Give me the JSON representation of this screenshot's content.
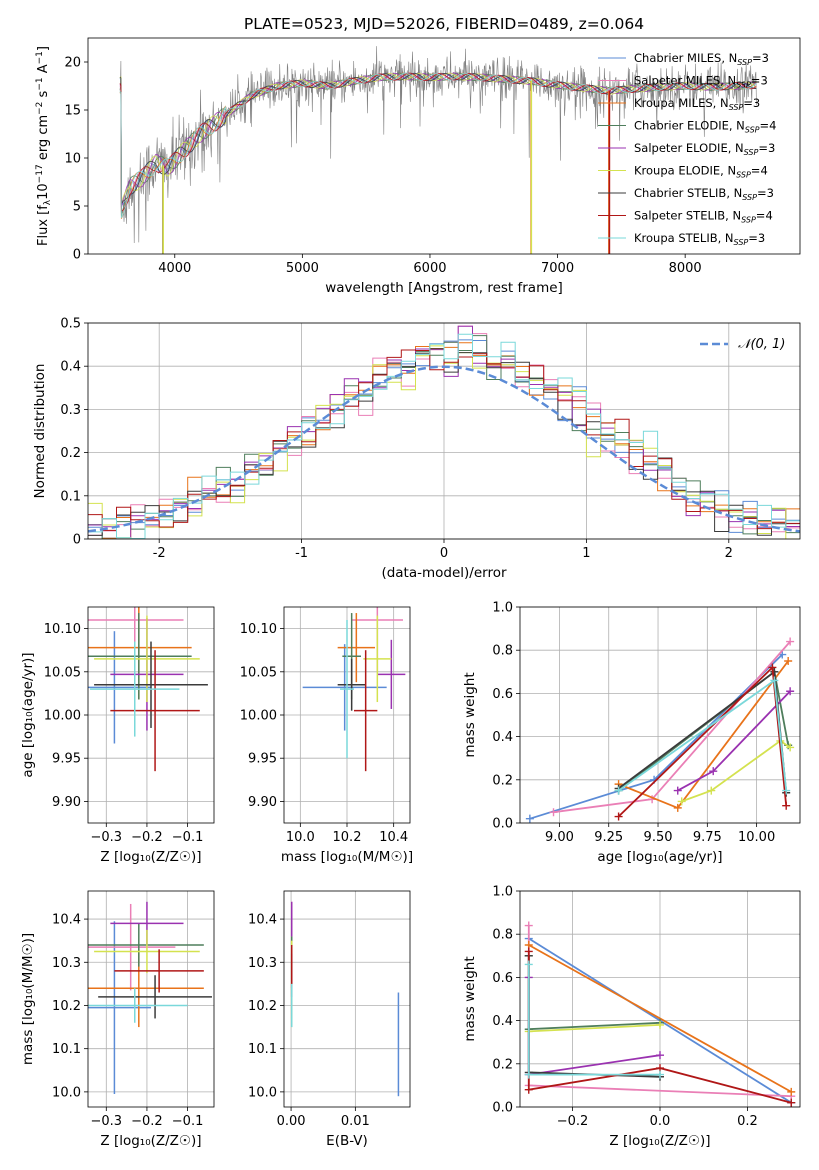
{
  "title": "PLATE=0523, MJD=52026, FIBERID=0489, z=0.064",
  "model_names": [
    "Chabrier MILES",
    "Salpeter MILES",
    "Kroupa MILES",
    "Chabrier ELODIE",
    "Salpeter ELODIE",
    "Kroupa ELODIE",
    "Chabrier STELIB",
    "Salpeter STELIB",
    "Kroupa STELIB"
  ],
  "colors": [
    "#5b8bd6",
    "#ea7fb6",
    "#e8731a",
    "#4f7e5c",
    "#9a32b0",
    "#d4e24f",
    "#3b3b3b",
    "#b01717",
    "#7ad8da"
  ],
  "chart_data": [
    {
      "id": "spectrum",
      "type": "line",
      "xlabel": "wavelength [Angstrom, rest frame]",
      "ylabel_parts": [
        "Flux [f",
        "λ",
        "10",
        "−17",
        " erg cm",
        "−2",
        " s",
        "−1",
        " A",
        "−1",
        "]"
      ],
      "xlim": [
        3320,
        8900
      ],
      "ylim": [
        0,
        22.5
      ],
      "xticks": [
        4000,
        5000,
        6000,
        7000,
        8000
      ],
      "yticks": [
        0,
        5,
        10,
        15,
        20
      ],
      "legend_position": "top-right",
      "legend": [
        {
          "name": "Chabrier MILES",
          "nssp": "3"
        },
        {
          "name": "Salpeter MILES",
          "nssp": "3"
        },
        {
          "name": "Kroupa MILES",
          "nssp": "3"
        },
        {
          "name": "Chabrier ELODIE",
          "nssp": "4"
        },
        {
          "name": "Salpeter ELODIE",
          "nssp": "3"
        },
        {
          "name": "Kroupa ELODIE",
          "nssp": "4"
        },
        {
          "name": "Chabrier STELIB",
          "nssp": "3"
        },
        {
          "name": "Salpeter STELIB",
          "nssp": "4"
        },
        {
          "name": "Kroupa STELIB",
          "nssp": "3"
        }
      ],
      "continuum": [
        [
          3580,
          4.5
        ],
        [
          3650,
          7
        ],
        [
          3750,
          8
        ],
        [
          3850,
          9.5
        ],
        [
          3950,
          9
        ],
        [
          4050,
          10.5
        ],
        [
          4200,
          12.5
        ],
        [
          4400,
          14.5
        ],
        [
          4600,
          16.5
        ],
        [
          4800,
          17.5
        ],
        [
          5000,
          17.8
        ],
        [
          5200,
          17.5
        ],
        [
          5400,
          18
        ],
        [
          5600,
          18.4
        ],
        [
          5800,
          18.5
        ],
        [
          6000,
          18.4
        ],
        [
          6200,
          18.5
        ],
        [
          6400,
          18.4
        ],
        [
          6600,
          18.2
        ],
        [
          6800,
          18.0
        ],
        [
          7000,
          17.6
        ],
        [
          7200,
          17.3
        ],
        [
          7400,
          17.0
        ],
        [
          7600,
          17.2
        ],
        [
          7800,
          17.4
        ],
        [
          8000,
          17.5
        ],
        [
          8200,
          17.4
        ],
        [
          8400,
          17.5
        ],
        [
          8560,
          17.6
        ]
      ],
      "data_range": [
        3570,
        8560
      ],
      "drops": [
        {
          "x": 3905,
          "series": [
            2,
            3,
            5
          ]
        },
        {
          "x": 6790,
          "series": [
            2,
            5
          ]
        },
        {
          "x": 7400,
          "series": [
            1,
            2,
            7
          ]
        }
      ]
    },
    {
      "id": "residuals",
      "type": "histogram",
      "xlabel": "(data-model)/error",
      "ylabel": "Normed distribution",
      "xlim": [
        -2.5,
        2.5
      ],
      "ylim": [
        0,
        0.5
      ],
      "xticks": [
        -2,
        -1,
        0,
        1,
        2
      ],
      "yticks": [
        0,
        0.1,
        0.2,
        0.3,
        0.4,
        0.5
      ],
      "bin_width": 0.1,
      "legend_position": "top-right",
      "reference_label": "𝒩(0, 1)",
      "reference_mean": 0,
      "reference_sigma": 1,
      "peak_shift": 0.15
    },
    {
      "id": "age-vs-Z",
      "type": "errorbar",
      "xlabel": "Z [log₁₀(Z/Z☉)]",
      "ylabel": "age  [log₁₀(age/yr)]",
      "xlim": [
        -0.345,
        -0.035
      ],
      "ylim": [
        9.875,
        10.125
      ],
      "xticks": [
        -0.3,
        -0.2,
        -0.1
      ],
      "xticklabels": [
        "−0.3",
        "−0.2",
        "−0.1"
      ],
      "yticks": [
        9.9,
        9.95,
        10.0,
        10.05,
        10.1
      ],
      "yticklabels": [
        "9.90",
        "9.95",
        "10.00",
        "10.05",
        "10.10"
      ],
      "points": [
        {
          "series": 0,
          "x": -0.28,
          "xerr": 0.09,
          "y": 10.032,
          "yerr": 0.065
        },
        {
          "series": 1,
          "x": -0.23,
          "xerr": 0.12,
          "y": 10.11,
          "yerr": 0.055
        },
        {
          "series": 2,
          "x": -0.22,
          "xerr": 0.13,
          "y": 10.078,
          "yerr": 0.06
        },
        {
          "series": 3,
          "x": -0.22,
          "xerr": 0.13,
          "y": 10.068,
          "yerr": 0.05
        },
        {
          "series": 4,
          "x": -0.2,
          "xerr": 0.09,
          "y": 10.047,
          "yerr": 0.065
        },
        {
          "series": 5,
          "x": -0.2,
          "xerr": 0.13,
          "y": 10.065,
          "yerr": 0.05
        },
        {
          "series": 6,
          "x": -0.19,
          "xerr": 0.14,
          "y": 10.035,
          "yerr": 0.05
        },
        {
          "series": 7,
          "x": -0.18,
          "xerr": 0.11,
          "y": 10.005,
          "yerr": 0.07
        },
        {
          "series": 8,
          "x": -0.23,
          "xerr": 0.11,
          "y": 10.03,
          "yerr": 0.055
        }
      ]
    },
    {
      "id": "age-vs-mass",
      "type": "errorbar",
      "xlabel": "mass [log₁₀(M/M☉)]",
      "xlim": [
        9.93,
        10.47
      ],
      "ylim": [
        9.875,
        10.125
      ],
      "xticks": [
        10.0,
        10.2,
        10.4
      ],
      "xticklabels": [
        "10.0",
        "10.2",
        "10.4"
      ],
      "yticks": [
        9.9,
        9.95,
        10.0,
        10.05,
        10.1
      ],
      "yticklabels": [
        "9.90",
        "9.95",
        "10.00",
        "10.05",
        "10.10"
      ],
      "points": [
        {
          "series": 0,
          "x": 10.19,
          "xerr": 0.18,
          "y": 10.032,
          "yerr": 0.05
        },
        {
          "series": 1,
          "x": 10.33,
          "xerr": 0.11,
          "y": 10.11,
          "yerr": 0.06
        },
        {
          "series": 2,
          "x": 10.24,
          "xerr": 0.08,
          "y": 10.078,
          "yerr": 0.04
        },
        {
          "series": 3,
          "x": 10.22,
          "xerr": 0.04,
          "y": 10.068,
          "yerr": 0.05
        },
        {
          "series": 4,
          "x": 10.39,
          "xerr": 0.06,
          "y": 10.047,
          "yerr": 0.04
        },
        {
          "series": 5,
          "x": 10.33,
          "xerr": 0.06,
          "y": 10.065,
          "yerr": 0.05
        },
        {
          "series": 6,
          "x": 10.22,
          "xerr": 0.06,
          "y": 10.035,
          "yerr": 0.03
        },
        {
          "series": 7,
          "x": 10.28,
          "xerr": 0.05,
          "y": 10.005,
          "yerr": 0.07
        },
        {
          "series": 8,
          "x": 10.2,
          "xerr": 0.03,
          "y": 10.03,
          "yerr": 0.08
        }
      ]
    },
    {
      "id": "mass-weight-vs-age",
      "type": "line",
      "xlabel": "age  [log₁₀(age/yr)]",
      "ylabel": "mass weight",
      "xlim": [
        8.8,
        10.22
      ],
      "ylim": [
        0,
        1
      ],
      "xticks": [
        9.0,
        9.25,
        9.5,
        9.75,
        10.0
      ],
      "xticklabels": [
        "9.00",
        "9.25",
        "9.50",
        "9.75",
        "10.00"
      ],
      "yticks": [
        0,
        0.2,
        0.4,
        0.6,
        0.8,
        1.0
      ],
      "yticklabels": [
        "0.0",
        "0.2",
        "0.4",
        "0.6",
        "0.8",
        "1.0"
      ],
      "series": [
        {
          "series": 0,
          "points": [
            [
              8.85,
              0.02
            ],
            [
              9.48,
              0.2
            ],
            [
              10.13,
              0.78
            ]
          ]
        },
        {
          "series": 1,
          "points": [
            [
              8.97,
              0.05
            ],
            [
              9.47,
              0.11
            ],
            [
              10.17,
              0.84
            ]
          ]
        },
        {
          "series": 2,
          "points": [
            [
              9.3,
              0.18
            ],
            [
              9.6,
              0.07
            ],
            [
              10.16,
              0.75
            ]
          ]
        },
        {
          "series": 3,
          "points": [
            [
              9.3,
              0.15
            ],
            [
              10.09,
              0.7
            ],
            [
              10.16,
              0.36
            ]
          ]
        },
        {
          "series": 4,
          "points": [
            [
              9.6,
              0.15
            ],
            [
              9.78,
              0.24
            ],
            [
              10.17,
              0.61
            ]
          ]
        },
        {
          "series": 5,
          "points": [
            [
              9.62,
              0.1
            ],
            [
              9.77,
              0.15
            ],
            [
              10.12,
              0.38
            ],
            [
              10.17,
              0.35
            ]
          ]
        },
        {
          "series": 6,
          "points": [
            [
              9.3,
              0.16
            ],
            [
              10.09,
              0.7
            ],
            [
              10.15,
              0.14
            ]
          ]
        },
        {
          "series": 7,
          "points": [
            [
              9.3,
              0.03
            ],
            [
              10.08,
              0.72
            ],
            [
              10.15,
              0.08
            ]
          ]
        },
        {
          "series": 8,
          "points": [
            [
              9.3,
              0.15
            ],
            [
              10.09,
              0.66
            ],
            [
              10.15,
              0.15
            ]
          ]
        }
      ]
    },
    {
      "id": "mass-vs-Z",
      "type": "errorbar",
      "xlabel": "Z [log₁₀(Z/Z☉)]",
      "ylabel": "mass [log₁₀(M/M☉)]",
      "xlim": [
        -0.345,
        -0.035
      ],
      "ylim": [
        9.965,
        10.465
      ],
      "xticks": [
        -0.3,
        -0.2,
        -0.1
      ],
      "xticklabels": [
        "−0.3",
        "−0.2",
        "−0.1"
      ],
      "yticks": [
        10.0,
        10.1,
        10.2,
        10.3,
        10.4
      ],
      "yticklabels": [
        "10.0",
        "10.1",
        "10.2",
        "10.3",
        "10.4"
      ],
      "points": [
        {
          "series": 0,
          "x": -0.28,
          "xerr": 0.09,
          "y": 10.195,
          "yerr": 0.2
        },
        {
          "series": 1,
          "x": -0.24,
          "xerr": 0.11,
          "y": 10.335,
          "yerr": 0.1
        },
        {
          "series": 2,
          "x": -0.22,
          "xerr": 0.16,
          "y": 10.24,
          "yerr": 0.09
        },
        {
          "series": 3,
          "x": -0.22,
          "xerr": 0.16,
          "y": 10.34,
          "yerr": 0.05
        },
        {
          "series": 4,
          "x": -0.2,
          "xerr": 0.09,
          "y": 10.39,
          "yerr": 0.05
        },
        {
          "series": 5,
          "x": -0.2,
          "xerr": 0.13,
          "y": 10.325,
          "yerr": 0.05
        },
        {
          "series": 6,
          "x": -0.18,
          "xerr": 0.14,
          "y": 10.22,
          "yerr": 0.05
        },
        {
          "series": 7,
          "x": -0.17,
          "xerr": 0.11,
          "y": 10.28,
          "yerr": 0.05
        },
        {
          "series": 8,
          "x": -0.23,
          "xerr": 0.13,
          "y": 10.2,
          "yerr": 0.04
        }
      ]
    },
    {
      "id": "mass-vs-ebv",
      "type": "errorbar",
      "xlabel": "E(B-V)",
      "xlim": [
        -0.0011,
        0.0185
      ],
      "ylim": [
        9.965,
        10.465
      ],
      "xticks": [
        0.0,
        0.01
      ],
      "xticklabels": [
        "0.00",
        "0.01"
      ],
      "yticks": [
        10.0,
        10.1,
        10.2,
        10.3,
        10.4
      ],
      "yticklabels": [
        "10.0",
        "10.1",
        "10.2",
        "10.3",
        "10.4"
      ],
      "points": [
        {
          "series": 0,
          "x": 0.0167,
          "xerr": 0,
          "y": 10.11,
          "yerr": 0.12
        },
        {
          "series": 1,
          "x": 0.0001,
          "xerr": 0,
          "y": 10.38,
          "yerr": 0.06
        },
        {
          "series": 2,
          "x": 0.0001,
          "xerr": 0,
          "y": 10.26,
          "yerr": 0.09
        },
        {
          "series": 3,
          "x": 0.0001,
          "xerr": 0,
          "y": 10.31,
          "yerr": 0.05
        },
        {
          "series": 4,
          "x": 0.0001,
          "xerr": 0,
          "y": 10.4,
          "yerr": 0.04
        },
        {
          "series": 5,
          "x": 0.0001,
          "xerr": 0,
          "y": 10.25,
          "yerr": 0.1
        },
        {
          "series": 6,
          "x": 0.0001,
          "xerr": 0,
          "y": 10.27,
          "yerr": 0.05
        },
        {
          "series": 7,
          "x": 0.0001,
          "xerr": 0,
          "y": 10.29,
          "yerr": 0.05
        },
        {
          "series": 8,
          "x": 0.0001,
          "xerr": 0,
          "y": 10.2,
          "yerr": 0.05
        }
      ]
    },
    {
      "id": "mass-weight-vs-Z",
      "type": "line",
      "xlabel": "Z [log₁₀(Z/Z☉)]",
      "ylabel": "mass weight",
      "xlim": [
        -0.32,
        0.32
      ],
      "ylim": [
        0,
        1
      ],
      "xticks": [
        -0.2,
        0.0,
        0.2
      ],
      "xticklabels": [
        "−0.2",
        "0.0",
        "0.2"
      ],
      "yticks": [
        0,
        0.2,
        0.4,
        0.6,
        0.8,
        1.0
      ],
      "yticklabels": [
        "0.0",
        "0.2",
        "0.4",
        "0.6",
        "0.8",
        "1.0"
      ],
      "series": [
        {
          "series": 0,
          "points": [
            [
              -0.3,
              0.78
            ],
            [
              0.3,
              0.02
            ]
          ]
        },
        {
          "series": 1,
          "points": [
            [
              -0.3,
              0.84
            ],
            [
              -0.3,
              0.1
            ],
            [
              0.3,
              0.05
            ]
          ]
        },
        {
          "series": 2,
          "points": [
            [
              -0.3,
              0.75
            ],
            [
              0.3,
              0.07
            ]
          ]
        },
        {
          "series": 3,
          "points": [
            [
              -0.3,
              0.7
            ],
            [
              -0.3,
              0.36
            ],
            [
              0.0,
              0.39
            ]
          ]
        },
        {
          "series": 4,
          "points": [
            [
              -0.3,
              0.6
            ],
            [
              -0.3,
              0.15
            ],
            [
              0.0,
              0.24
            ]
          ]
        },
        {
          "series": 5,
          "points": [
            [
              -0.3,
              0.35
            ],
            [
              0.0,
              0.38
            ]
          ]
        },
        {
          "series": 6,
          "points": [
            [
              -0.3,
              0.7
            ],
            [
              -0.3,
              0.16
            ],
            [
              0.0,
              0.14
            ]
          ]
        },
        {
          "series": 7,
          "points": [
            [
              -0.3,
              0.72
            ],
            [
              -0.3,
              0.08
            ],
            [
              0.0,
              0.18
            ],
            [
              0.3,
              0.02
            ]
          ]
        },
        {
          "series": 8,
          "points": [
            [
              -0.3,
              0.66
            ],
            [
              -0.3,
              0.15
            ],
            [
              0.0,
              0.15
            ]
          ]
        }
      ]
    }
  ]
}
